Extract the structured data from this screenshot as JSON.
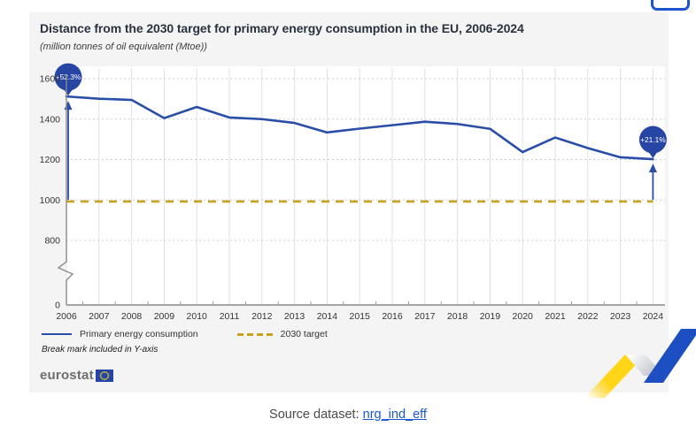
{
  "header": {
    "title": "Distance from the 2030 target for primary energy consumption in the EU, 2006-2024",
    "subtitle": "(million tonnes of oil equivalent (Mtoe))"
  },
  "legend": {
    "items": [
      {
        "label": "Primary energy consumption",
        "style": "solid",
        "color": "#2a4da8"
      },
      {
        "label": "2030 target",
        "style": "dashed",
        "color": "#c7a21e"
      }
    ]
  },
  "footnote": "Break mark included in Y-axis",
  "brand": {
    "wordmark": "eurostat"
  },
  "source": {
    "label": "Source dataset:",
    "link_text": "nrg_ind_eff"
  },
  "colors": {
    "line": "#2a4da8",
    "badge": "#2745a3",
    "target": "#c7a21e",
    "card_bg": "#f4f4f4",
    "link": "#1a56d6",
    "ribbon_yellow": "#ffd617",
    "ribbon_blue": "#1e4fc2"
  },
  "chart_data": {
    "type": "line",
    "title": "Distance from the 2030 target for primary energy consumption in the EU, 2006-2024",
    "unit": "(million tonnes of oil equivalent (Mtoe))",
    "x": [
      2006,
      2007,
      2008,
      2009,
      2010,
      2011,
      2012,
      2013,
      2014,
      2015,
      2016,
      2017,
      2018,
      2019,
      2020,
      2021,
      2022,
      2023,
      2024
    ],
    "series": [
      {
        "name": "Primary energy consumption",
        "color": "#2a4da8",
        "style": "solid",
        "values": [
          1512,
          1501,
          1495,
          1405,
          1460,
          1408,
          1400,
          1381,
          1334,
          1353,
          1370,
          1387,
          1376,
          1352,
          1237,
          1309,
          1257,
          1211,
          1202
        ]
      },
      {
        "name": "2030 target",
        "color": "#c7a21e",
        "style": "dashed",
        "constant": 992.5
      }
    ],
    "annotations": [
      {
        "x": 2006,
        "label": "+52.3%"
      },
      {
        "x": 2024,
        "label": "+21.1%"
      }
    ],
    "yticks": [
      0,
      800,
      1000,
      1200,
      1400,
      1600
    ],
    "axis_break": true,
    "grid": true,
    "legend_position": "bottom",
    "ylim_visible": [
      800,
      1600
    ]
  }
}
